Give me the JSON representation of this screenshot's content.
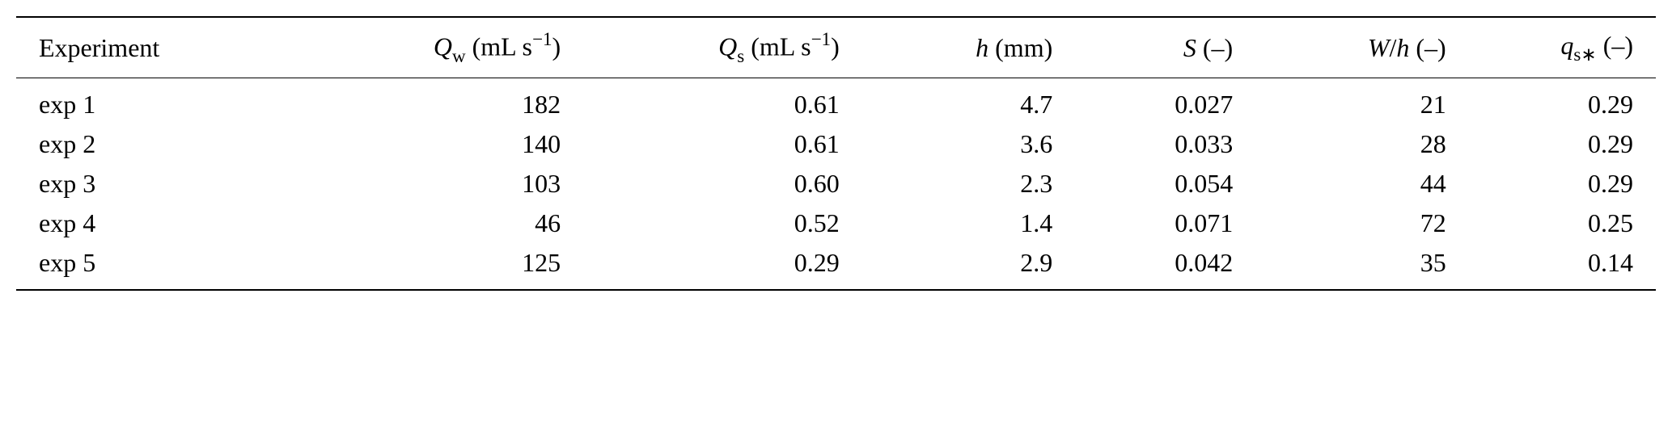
{
  "table": {
    "type": "table",
    "background_color": "#ffffff",
    "text_color": "#000000",
    "rule_color": "#000000",
    "font_family": "Times New Roman",
    "font_size_pt": 24,
    "rule_top_width": 2,
    "rule_mid_width": 1.5,
    "rule_bottom_width": 2,
    "columns": [
      {
        "key": "experiment",
        "align": "left",
        "width_pct": 17
      },
      {
        "key": "Qw",
        "align": "right",
        "width_pct": 17
      },
      {
        "key": "Qs",
        "align": "right",
        "width_pct": 17
      },
      {
        "key": "h",
        "align": "right",
        "width_pct": 13
      },
      {
        "key": "S",
        "align": "right",
        "width_pct": 11
      },
      {
        "key": "Wh",
        "align": "right",
        "width_pct": 13
      },
      {
        "key": "qsstar",
        "align": "right",
        "width_pct": 12
      }
    ],
    "headers": {
      "experiment": {
        "label": "Experiment"
      },
      "Qw": {
        "sym": "Q",
        "sub": "w",
        "unit_open": " (mL s",
        "sup": "−1",
        "unit_close": ")"
      },
      "Qs": {
        "sym": "Q",
        "sub": "s",
        "unit_open": " (mL s",
        "sup": "−1",
        "unit_close": ")"
      },
      "h": {
        "sym": "h",
        "unit": " (mm)"
      },
      "S": {
        "sym": "S",
        "unit": " (–)"
      },
      "Wh": {
        "sym_a": "W",
        "slash": "/",
        "sym_b": "h",
        "unit": " (–)"
      },
      "qsstar": {
        "sym": "q",
        "sub": "s∗",
        "unit": " (–)"
      }
    },
    "rows": [
      {
        "experiment": "exp 1",
        "Qw": "182",
        "Qs": "0.61",
        "h": "4.7",
        "S": "0.027",
        "Wh": "21",
        "qsstar": "0.29"
      },
      {
        "experiment": "exp 2",
        "Qw": "140",
        "Qs": "0.61",
        "h": "3.6",
        "S": "0.033",
        "Wh": "28",
        "qsstar": "0.29"
      },
      {
        "experiment": "exp 3",
        "Qw": "103",
        "Qs": "0.60",
        "h": "2.3",
        "S": "0.054",
        "Wh": "44",
        "qsstar": "0.29"
      },
      {
        "experiment": "exp 4",
        "Qw": "46",
        "Qs": "0.52",
        "h": "1.4",
        "S": "0.071",
        "Wh": "72",
        "qsstar": "0.25"
      },
      {
        "experiment": "exp 5",
        "Qw": "125",
        "Qs": "0.29",
        "h": "2.9",
        "S": "0.042",
        "Wh": "35",
        "qsstar": "0.14"
      }
    ]
  }
}
